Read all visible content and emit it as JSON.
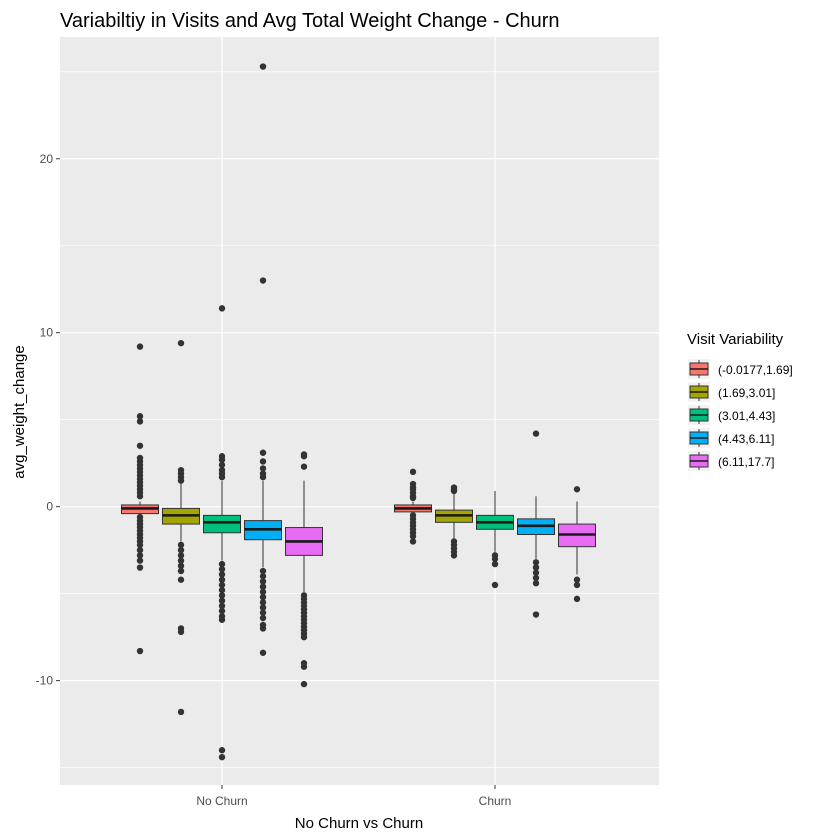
{
  "chart_data": {
    "type": "boxplot",
    "title": "Variabiltiy in Visits and Avg Total Weight Change - Churn",
    "xlabel": "No Churn vs Churn",
    "ylabel": "avg_weight_change",
    "categories": [
      "No Churn",
      "Churn"
    ],
    "ylim": [
      -16.0,
      27.0
    ],
    "yticks": [
      -10,
      0,
      10,
      20
    ],
    "grid": true,
    "legend": {
      "title": "Visit Variability",
      "position": "right"
    },
    "series": [
      {
        "name": "(-0.0177,1.69]",
        "color": "#F8766D",
        "boxes": [
          {
            "min": -0.4,
            "q1": -0.4,
            "median": -0.1,
            "q3": 0.1,
            "max": 0.3,
            "outliers": [
              9.2,
              5.2,
              4.9,
              3.5,
              2.8,
              2.6,
              2.4,
              2.2,
              2.0,
              1.8,
              1.6,
              1.4,
              1.2,
              1.0,
              0.8,
              0.6,
              -0.6,
              -0.8,
              -1.0,
              -1.2,
              -1.4,
              -1.6,
              -1.8,
              -2.0,
              -2.2,
              -2.5,
              -2.8,
              -3.1,
              -3.5,
              -8.3
            ]
          },
          {
            "min": -0.3,
            "q1": -0.3,
            "median": -0.1,
            "q3": 0.1,
            "max": 0.3,
            "outliers": [
              2.0,
              1.3,
              1.1,
              1.0,
              0.8,
              0.6,
              0.5,
              -0.5,
              -0.7,
              -0.9,
              -1.1,
              -1.3,
              -1.5,
              -1.7,
              -2.0
            ]
          }
        ]
      },
      {
        "name": "(1.69,3.01]",
        "color": "#A3A500",
        "boxes": [
          {
            "min": -2.0,
            "q1": -1.0,
            "median": -0.5,
            "q3": -0.1,
            "max": 1.4,
            "outliers": [
              9.4,
              2.1,
              1.9,
              1.7,
              1.5,
              -2.2,
              -2.5,
              -2.8,
              -3.1,
              -3.4,
              -3.7,
              -4.2,
              -7.0,
              -7.2,
              -11.8
            ]
          },
          {
            "min": -1.9,
            "q1": -0.9,
            "median": -0.5,
            "q3": -0.2,
            "max": 0.8,
            "outliers": [
              1.1,
              1.0,
              0.9,
              -2.0,
              -2.2,
              -2.4,
              -2.6,
              -2.8
            ]
          }
        ]
      },
      {
        "name": "(3.01,4.43]",
        "color": "#00BF7D",
        "boxes": [
          {
            "min": -3.1,
            "q1": -1.5,
            "median": -0.9,
            "q3": -0.5,
            "max": 1.5,
            "outliers": [
              11.4,
              2.9,
              2.7,
              2.4,
              2.1,
              1.9,
              1.7,
              -3.3,
              -3.6,
              -3.9,
              -4.2,
              -4.5,
              -4.8,
              -5.1,
              -5.4,
              -5.7,
              -6.0,
              -6.3,
              -6.5,
              -14.0,
              -14.4
            ]
          },
          {
            "min": -2.6,
            "q1": -1.3,
            "median": -0.9,
            "q3": -0.5,
            "max": 0.9,
            "outliers": [
              -2.8,
              -3.0,
              -3.3,
              -4.5
            ]
          }
        ]
      },
      {
        "name": "(4.43,6.11]",
        "color": "#00B0F6",
        "boxes": [
          {
            "min": -3.5,
            "q1": -1.9,
            "median": -1.3,
            "q3": -0.8,
            "max": 1.5,
            "outliers": [
              13.0,
              25.3,
              3.1,
              2.6,
              2.2,
              1.9,
              1.7,
              -3.7,
              -4.0,
              -4.3,
              -4.6,
              -4.9,
              -5.2,
              -5.5,
              -5.8,
              -6.1,
              -6.4,
              -6.8,
              -7.0,
              -8.4
            ]
          },
          {
            "min": -3.0,
            "q1": -1.6,
            "median": -1.1,
            "q3": -0.7,
            "max": 0.6,
            "outliers": [
              4.2,
              -3.2,
              -3.5,
              -3.8,
              -4.1,
              -4.4,
              -6.2
            ]
          }
        ]
      },
      {
        "name": "(6.11,17.7]",
        "color": "#E76BF3",
        "boxes": [
          {
            "min": -5.0,
            "q1": -2.8,
            "median": -2.0,
            "q3": -1.2,
            "max": 1.5,
            "outliers": [
              3.0,
              2.9,
              2.3,
              -5.1,
              -5.3,
              -5.5,
              -5.7,
              -5.9,
              -6.1,
              -6.3,
              -6.5,
              -6.7,
              -6.9,
              -7.1,
              -7.3,
              -7.5,
              -9.0,
              -9.2,
              -10.2
            ]
          },
          {
            "min": -3.9,
            "q1": -2.3,
            "median": -1.6,
            "q3": -1.0,
            "max": 0.3,
            "outliers": [
              1.0,
              -4.2,
              -4.5,
              -5.3
            ]
          }
        ]
      }
    ]
  }
}
